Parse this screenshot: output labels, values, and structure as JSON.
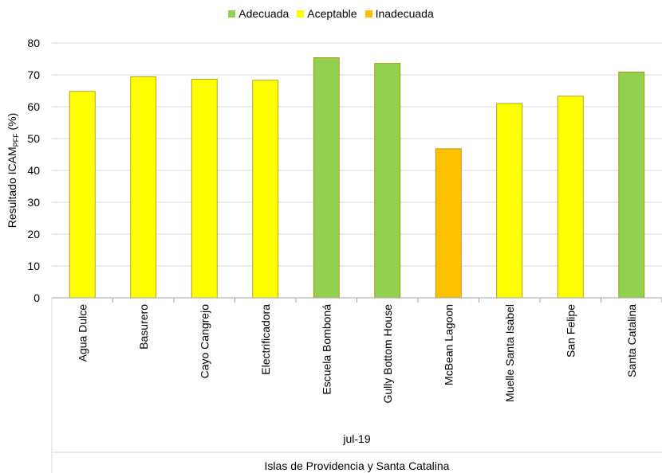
{
  "chart_data": {
    "type": "bar",
    "ylabel_main": "Resultado ICAM",
    "ylabel_sub": "PFF",
    "ylabel_tail": " (%)",
    "ylim": [
      0,
      80
    ],
    "yticks": [
      0,
      10,
      20,
      30,
      40,
      50,
      60,
      70,
      80
    ],
    "categories": [
      "Agua Dulce",
      "Basurero",
      "Cayo Cangrejo",
      "Electrificadora",
      "Escuela Bomboná",
      "Gully Bottom House",
      "McBean Lagoon",
      "Muelle Santa Isabel",
      "San Felipe",
      "Santa Catalina"
    ],
    "values": [
      64.8,
      69.4,
      68.6,
      68.3,
      75.4,
      73.6,
      46.8,
      61.0,
      63.3,
      70.9
    ],
    "classes": [
      "Aceptable",
      "Aceptable",
      "Aceptable",
      "Aceptable",
      "Adecuada",
      "Adecuada",
      "Inadecuada",
      "Aceptable",
      "Aceptable",
      "Adecuada"
    ],
    "legend": [
      {
        "name": "Adecuada",
        "color": "#92d050"
      },
      {
        "name": "Aceptable",
        "color": "#ffff00"
      },
      {
        "name": "Inadecuada",
        "color": "#ffc000"
      }
    ],
    "legend_position": "top-center",
    "group_label_1": "jul-19",
    "group_label_2": "Islas de Providencia y Santa Catalina",
    "grid": true
  }
}
